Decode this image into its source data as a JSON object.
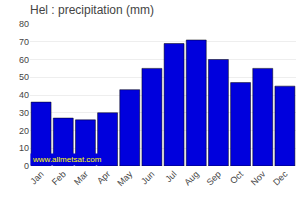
{
  "chart_data": {
    "type": "bar",
    "title": "Hel : precipitation (mm)",
    "categories": [
      "Jan",
      "Feb",
      "Mar",
      "Apr",
      "May",
      "Jun",
      "Jul",
      "Aug",
      "Sep",
      "Oct",
      "Nov",
      "Dec"
    ],
    "values": [
      36,
      27,
      26,
      30,
      43,
      55,
      69,
      71,
      60,
      47,
      55,
      45
    ],
    "color": "#0000DD",
    "ylim": [
      0,
      80
    ],
    "yticks": [
      0,
      10,
      20,
      30,
      40,
      50,
      60,
      70,
      80
    ],
    "grid": true,
    "annotations": [
      "www.allmetsat.com"
    ]
  }
}
